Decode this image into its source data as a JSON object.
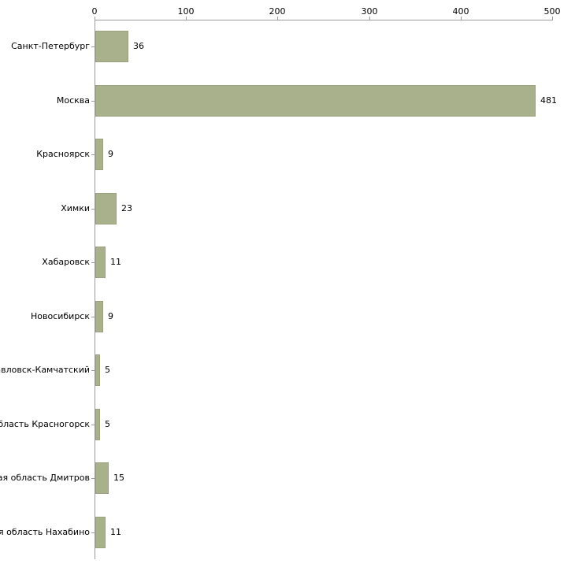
{
  "chart_data": {
    "type": "bar",
    "orientation": "horizontal",
    "title": "",
    "xlabel": "",
    "ylabel": "",
    "categories": [
      "Санкт-Петербург",
      "Москва",
      "Красноярск",
      "Химки",
      "Хабаровск",
      "Новосибирск",
      "павловск-Камчатский",
      "область Красногорск",
      "кая область Дмитров",
      "ая область Нахабино"
    ],
    "values": [
      36,
      481,
      9,
      23,
      11,
      9,
      5,
      5,
      15,
      11
    ],
    "value_labels": [
      "36",
      "481",
      "9",
      "23",
      "11",
      "9",
      "5",
      "5",
      "15",
      "11"
    ],
    "x_ticks": [
      0,
      100,
      200,
      300,
      400,
      500
    ],
    "x_tick_labels": [
      "0",
      "100",
      "200",
      "300",
      "400",
      "500"
    ],
    "xlim": [
      0,
      500
    ],
    "grid": false,
    "legend": false,
    "bar_color": "#a8b18c",
    "bar_border_color": "#9aa37e",
    "axis_color": "#9b9b9b",
    "text_color": "#000000",
    "background_color": "#ffffff"
  }
}
